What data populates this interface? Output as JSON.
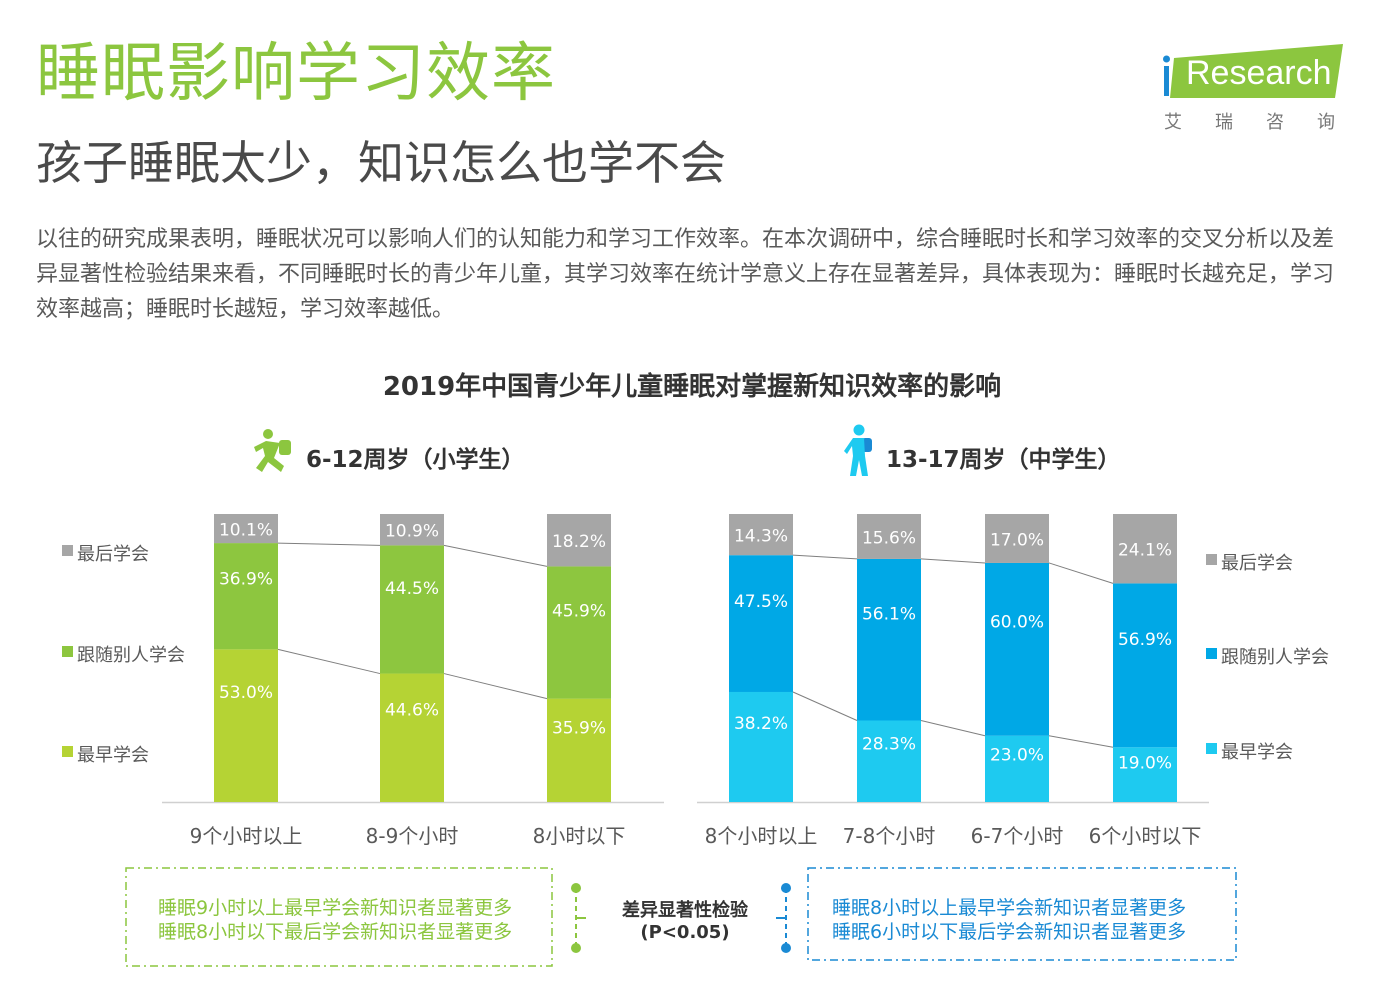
{
  "header": {
    "title": "睡眠影响学习效率",
    "subtitle": "孩子睡眠太少，知识怎么也学不会",
    "body": "以往的研究成果表明，睡眠状况可以影响人们的认知能力和学习工作效率。在本次调研中，综合睡眠时长和学习效率的交叉分析以及差异显著性检验结果来看，不同睡眠时长的青少年儿童，其学习效率在统计学意义上存在显著差异，具体表现为：睡眠时长越充足，学习效率越高；睡眠时长越短，学习效率越低。"
  },
  "logo": {
    "brand": "Research",
    "sub": "艾瑞咨询"
  },
  "colors": {
    "brand_green": "#8cc63f",
    "gray": "#a6a6a6",
    "mid_green": "#8dc63f",
    "light_green": "#b5d334",
    "mid_blue": "#00a8e6",
    "light_blue": "#1ecaf0",
    "note_blue": "#1a8ad4"
  },
  "chart_data": {
    "type": "bar",
    "stacked": true,
    "title": "2019年中国青少年儿童睡眠对掌握新知识效率的影响",
    "panels": [
      {
        "group": "6-12周岁（小学生）",
        "categories": [
          "9个小时以上",
          "8-9个小时",
          "8小时以下"
        ],
        "series": [
          {
            "name": "最早学会",
            "values": [
              53.0,
              44.6,
              35.9
            ],
            "labels": [
              "53.0%",
              "44.6%",
              "35.9%"
            ]
          },
          {
            "name": "跟随别人学会",
            "values": [
              36.9,
              44.5,
              45.9
            ],
            "labels": [
              "36.9%",
              "44.5%",
              "45.9%"
            ]
          },
          {
            "name": "最后学会",
            "values": [
              10.1,
              10.9,
              18.2
            ],
            "labels": [
              "10.1%",
              "10.9%",
              "18.2%"
            ]
          }
        ],
        "legend": [
          "最后学会",
          "跟随别人学会",
          "最早学会"
        ],
        "legend_position": "left",
        "ylim": [
          0,
          100
        ]
      },
      {
        "group": "13-17周岁（中学生）",
        "categories": [
          "8个小时以上",
          "7-8个小时",
          "6-7个小时",
          "6个小时以下"
        ],
        "series": [
          {
            "name": "最早学会",
            "values": [
              38.2,
              28.3,
              23.0,
              19.0
            ],
            "labels": [
              "38.2%",
              "28.3%",
              "23.0%",
              "19.0%"
            ]
          },
          {
            "name": "跟随别人学会",
            "values": [
              47.5,
              56.1,
              60.0,
              56.9
            ],
            "labels": [
              "47.5%",
              "56.1%",
              "60.0%",
              "56.9%"
            ]
          },
          {
            "name": "最后学会",
            "values": [
              14.3,
              15.6,
              17.0,
              24.1
            ],
            "labels": [
              "14.3%",
              "15.6%",
              "17.0%",
              "24.1%"
            ]
          }
        ],
        "legend": [
          "最后学会",
          "跟随别人学会",
          "最早学会"
        ],
        "legend_position": "right",
        "ylim": [
          0,
          100
        ]
      }
    ]
  },
  "notes": {
    "left": [
      "睡眠9小时以上最早学会新知识者显著更多",
      "睡眠8小时以下最后学会新知识者显著更多"
    ],
    "right": [
      "睡眠8小时以上最早学会新知识者显著更多",
      "睡眠6小时以下最后学会新知识者显著更多"
    ],
    "test_label": "差异显著性检验",
    "test_p": "(P<0.05)"
  }
}
